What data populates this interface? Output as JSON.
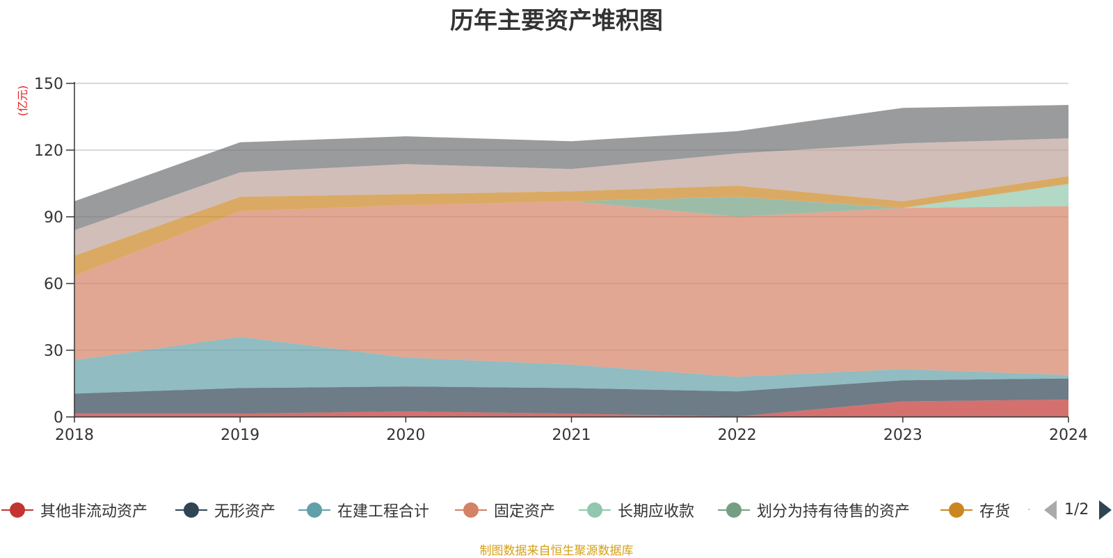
{
  "chart_data": {
    "type": "area",
    "stacked": true,
    "title": "历年主要资产堆积图",
    "ylabel": "(亿元)",
    "xlabel": "",
    "x": [
      "2018",
      "2019",
      "2020",
      "2021",
      "2022",
      "2023",
      "2024"
    ],
    "ylim": [
      0,
      150
    ],
    "yticks": [
      0,
      30,
      60,
      90,
      120,
      150
    ],
    "grid": true,
    "legend_position": "bottom",
    "series": [
      {
        "name": "其他非流动资产",
        "color": "#c23531",
        "values": [
          1.5,
          1.5,
          2.5,
          1.5,
          0.2,
          7.0,
          7.8
        ]
      },
      {
        "name": "无形资产",
        "color": "#2f4554",
        "values": [
          9.0,
          11.5,
          11.2,
          11.5,
          11.3,
          9.5,
          9.5
        ]
      },
      {
        "name": "在建工程合计",
        "color": "#61a0a8",
        "values": [
          15.0,
          23.0,
          13.0,
          10.5,
          6.5,
          5.0,
          1.5
        ]
      },
      {
        "name": "固定资产",
        "color": "#d48265",
        "values": [
          38.0,
          56.5,
          68.5,
          73.5,
          72.0,
          72.5,
          76.0
        ]
      },
      {
        "name": "长期应收款",
        "color": "#91c7ae",
        "values": [
          0,
          0,
          0,
          0,
          0,
          0,
          10.0
        ]
      },
      {
        "name": "划分为持有待售的资产",
        "color": "#749f83",
        "values": [
          0,
          0,
          0,
          0,
          9.0,
          0,
          0
        ]
      },
      {
        "name": "存货",
        "color": "#ca8622",
        "values": [
          9.0,
          6.5,
          5.0,
          4.5,
          5.0,
          3.0,
          3.5
        ]
      },
      {
        "name": "",
        "color": "#bda29a",
        "values": [
          11.5,
          11.0,
          13.5,
          10.0,
          14.5,
          26.0,
          17.0
        ]
      },
      {
        "name": "",
        "color": "#6e7074",
        "values": [
          13.0,
          13.5,
          12.5,
          12.5,
          10.0,
          16.0,
          15.0
        ]
      }
    ]
  },
  "legend": {
    "items": [
      {
        "label": "其他非流动资产",
        "color": "#c23531"
      },
      {
        "label": "无形资产",
        "color": "#2f4554"
      },
      {
        "label": "在建工程合计",
        "color": "#61a0a8"
      },
      {
        "label": "固定资产",
        "color": "#d48265"
      },
      {
        "label": "长期应收款",
        "color": "#91c7ae"
      },
      {
        "label": "划分为持有待售的资产",
        "color": "#749f83"
      },
      {
        "label": "存货",
        "color": "#ca8622"
      }
    ],
    "page": "1/2"
  },
  "source_note": "制图数据来自恒生聚源数据库"
}
